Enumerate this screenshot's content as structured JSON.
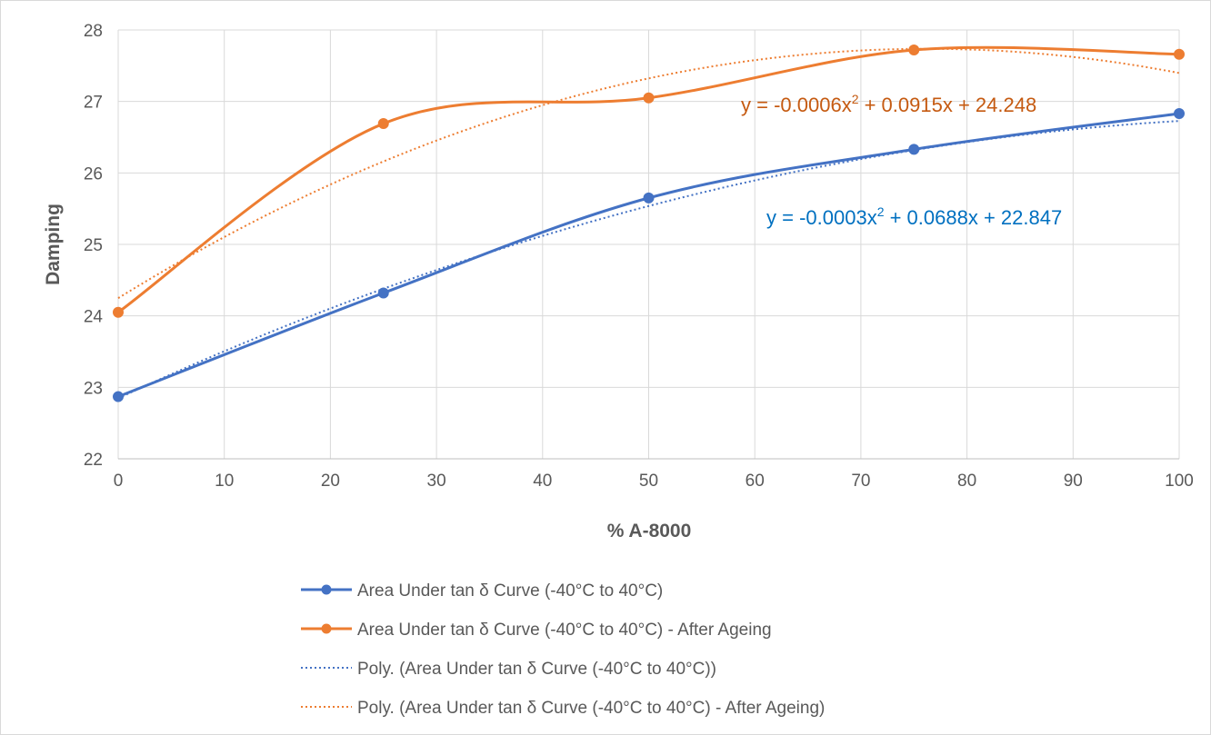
{
  "chart_data": {
    "type": "line",
    "title": "",
    "xlabel": "% A-8000",
    "ylabel": "Damping",
    "xlim": [
      0,
      100
    ],
    "ylim": [
      22,
      28
    ],
    "x_ticks": [
      0,
      10,
      20,
      30,
      40,
      50,
      60,
      70,
      80,
      90,
      100
    ],
    "y_ticks": [
      22,
      23,
      24,
      25,
      26,
      27,
      28
    ],
    "grid": true,
    "legend_position": "bottom",
    "series": [
      {
        "name": "Area Under tan δ Curve (-40°C to 40°C)",
        "color": "#4472c4",
        "style": "smooth-line-markers",
        "x": [
          0,
          25,
          50,
          75,
          100
        ],
        "y": [
          22.87,
          24.32,
          25.65,
          26.33,
          26.83
        ]
      },
      {
        "name": "Area Under tan δ Curve (-40°C to 40°C) - After Ageing",
        "color": "#ed7d31",
        "style": "smooth-line-markers",
        "x": [
          0,
          25,
          50,
          75,
          100
        ],
        "y": [
          24.05,
          26.69,
          27.05,
          27.72,
          27.66
        ]
      }
    ],
    "trendlines": [
      {
        "name": "Poly. (Area Under tan δ Curve (-40°C to 40°C))",
        "color": "#4472c4",
        "style": "dotted",
        "coefficients": [
          -0.0003,
          0.0688,
          22.847
        ],
        "equation": {
          "prefix": "y = -0.0003x",
          "sup": "2",
          "suffix": " + 0.0688x + 22.847",
          "color": "#0070c0"
        }
      },
      {
        "name": "Poly. (Area Under tan δ Curve (-40°C to 40°C) - After Ageing)",
        "color": "#ed7d31",
        "style": "dotted",
        "coefficients": [
          -0.0006,
          0.0915,
          24.248
        ],
        "equation": {
          "prefix": "y = -0.0006x",
          "sup": "2",
          "suffix": " + 0.0915x + 24.248",
          "color": "#c55a11"
        }
      }
    ]
  }
}
